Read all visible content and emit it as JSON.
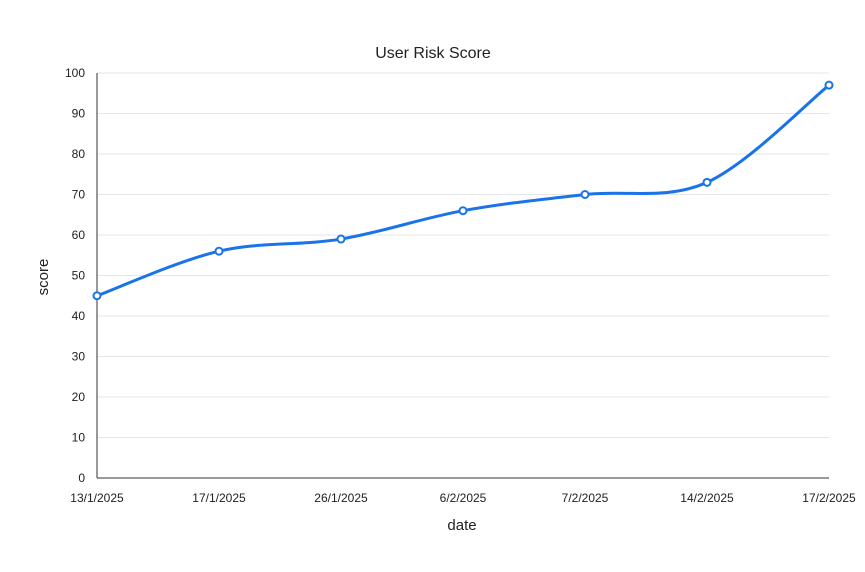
{
  "chart_data": {
    "type": "line",
    "title": "User Risk Score",
    "xlabel": "date",
    "ylabel": "score",
    "categories": [
      "13/1/2025",
      "17/1/2025",
      "26/1/2025",
      "6/2/2025",
      "7/2/2025",
      "14/2/2025",
      "17/2/2025"
    ],
    "series": [
      {
        "name": "",
        "values": [
          45,
          56,
          59,
          66,
          70,
          73,
          97
        ]
      }
    ],
    "ylim": [
      0,
      100
    ],
    "yticks": [
      0,
      10,
      20,
      30,
      40,
      50,
      60,
      70,
      80,
      90,
      100
    ],
    "grid": true,
    "legend": "none",
    "smooth": true,
    "colors": {
      "series": "#1a73e8",
      "grid": "#e6e6e6",
      "axis": "#333333",
      "text": "#202124"
    }
  }
}
